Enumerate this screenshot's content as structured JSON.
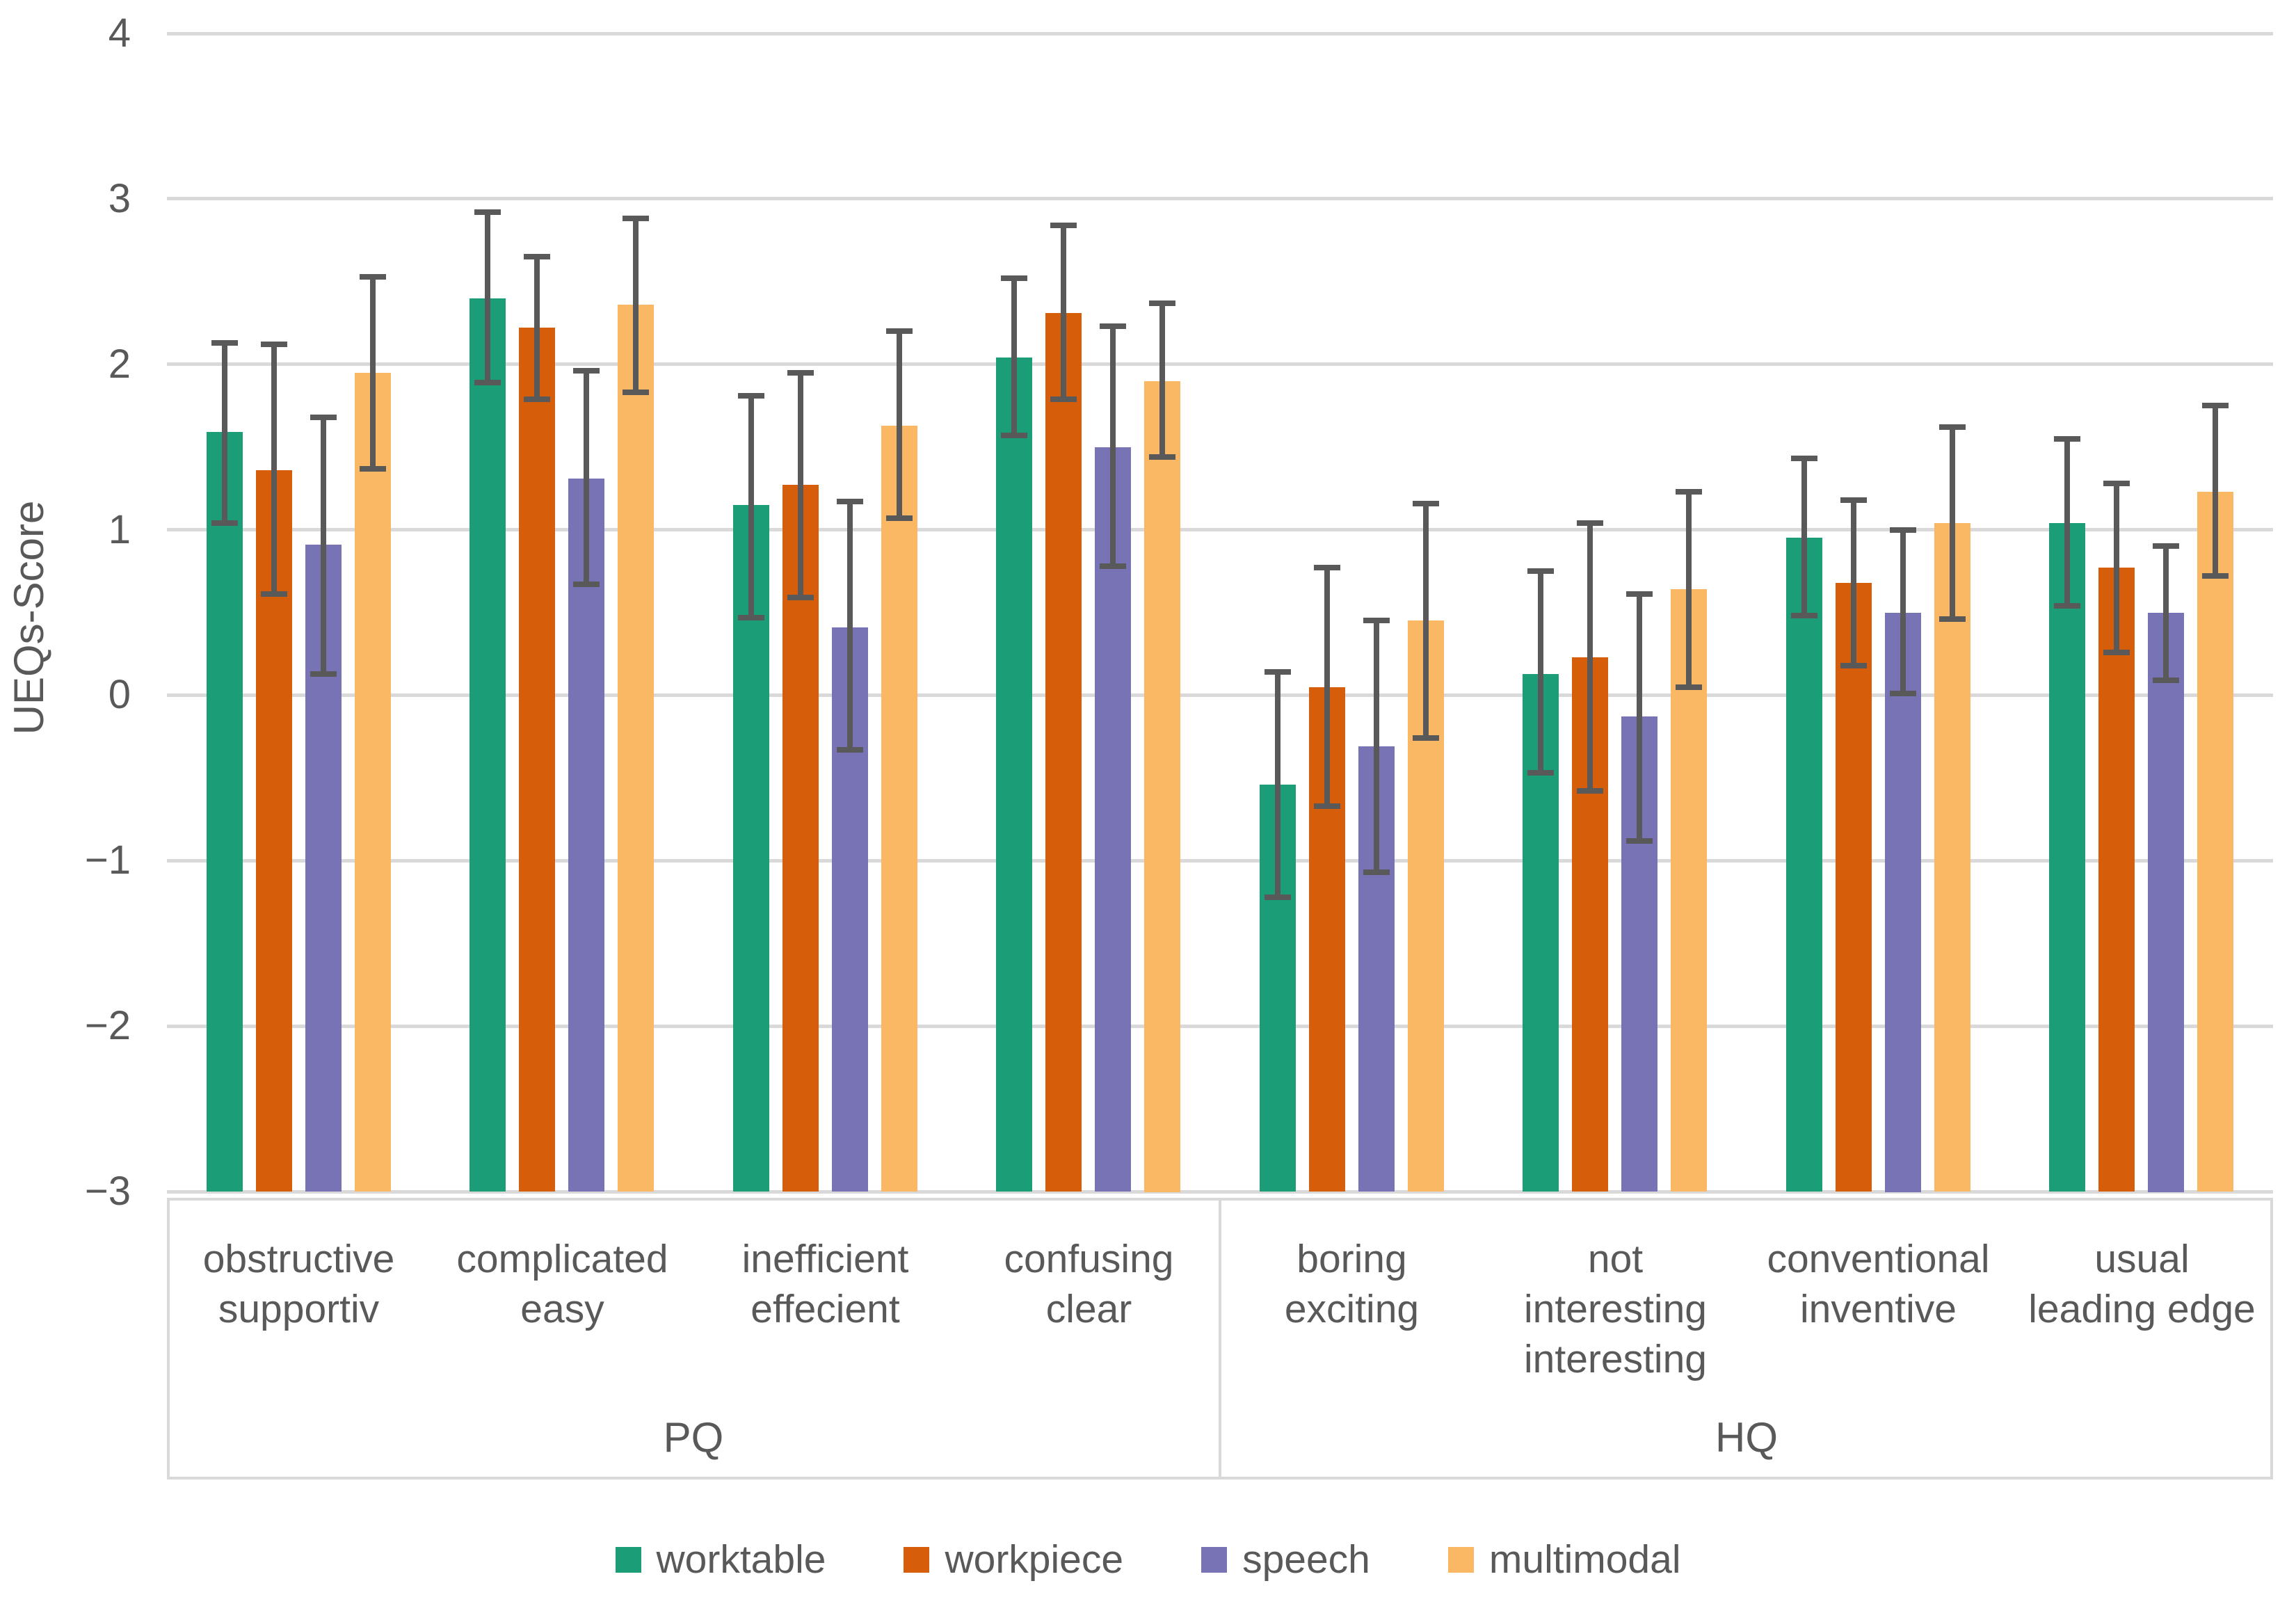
{
  "chart_data": {
    "type": "bar",
    "title": "",
    "ylabel": "UEQs-Score",
    "xlabel": "",
    "ylim": [
      -3,
      4
    ],
    "yticks": [
      4,
      3,
      2,
      1,
      0,
      -1,
      -2,
      -3
    ],
    "bar_base": -3,
    "grid": true,
    "legend_position": "bottom",
    "grid_color": "#D9D9D9",
    "text_color": "#595959",
    "error_bar_color": "#595959",
    "sections": [
      {
        "label": "PQ",
        "category_indexes": [
          0,
          1,
          2,
          3
        ]
      },
      {
        "label": "HQ",
        "category_indexes": [
          4,
          5,
          6,
          7
        ]
      }
    ],
    "categories": [
      {
        "lines": [
          "obstructive",
          "supportiv"
        ]
      },
      {
        "lines": [
          "complicated",
          "easy"
        ]
      },
      {
        "lines": [
          "inefficient",
          "effecient"
        ]
      },
      {
        "lines": [
          "confusing",
          "clear"
        ]
      },
      {
        "lines": [
          "boring",
          "exciting"
        ]
      },
      {
        "lines": [
          "not",
          "interesting",
          "interesting"
        ]
      },
      {
        "lines": [
          "conventional",
          "inventive"
        ]
      },
      {
        "lines": [
          "usual",
          "leading edge"
        ]
      }
    ],
    "series": [
      {
        "name": "worktable",
        "color": "#1B9E77",
        "values": [
          1.59,
          2.4,
          1.15,
          2.04,
          -0.54,
          0.13,
          0.95,
          1.04
        ],
        "err_low": [
          1.04,
          1.89,
          0.47,
          1.57,
          -1.22,
          -0.47,
          0.48,
          0.54
        ],
        "err_high": [
          2.13,
          2.92,
          1.81,
          2.52,
          0.14,
          0.75,
          1.43,
          1.55
        ]
      },
      {
        "name": "workpiece",
        "color": "#D65E0A",
        "values": [
          1.36,
          2.22,
          1.27,
          2.31,
          0.05,
          0.23,
          0.68,
          0.77
        ],
        "err_low": [
          0.61,
          1.79,
          0.59,
          1.79,
          -0.67,
          -0.58,
          0.18,
          0.26
        ],
        "err_high": [
          2.12,
          2.65,
          1.95,
          2.84,
          0.77,
          1.04,
          1.18,
          1.28
        ]
      },
      {
        "name": "speech",
        "color": "#7873B4",
        "values": [
          0.91,
          1.31,
          0.41,
          1.5,
          -0.31,
          -0.13,
          0.5,
          0.5
        ],
        "err_low": [
          0.13,
          0.67,
          -0.33,
          0.78,
          -1.07,
          -0.88,
          0.01,
          0.09
        ],
        "err_high": [
          1.68,
          1.96,
          1.17,
          2.23,
          0.45,
          0.61,
          1.0,
          0.9
        ]
      },
      {
        "name": "multimodal",
        "color": "#FAB764",
        "values": [
          1.95,
          2.36,
          1.63,
          1.9,
          0.45,
          0.64,
          1.04,
          1.23
        ],
        "err_low": [
          1.37,
          1.83,
          1.07,
          1.44,
          -0.26,
          0.05,
          0.46,
          0.72
        ],
        "err_high": [
          2.53,
          2.88,
          2.2,
          2.37,
          1.16,
          1.23,
          1.62,
          1.75
        ]
      }
    ]
  }
}
